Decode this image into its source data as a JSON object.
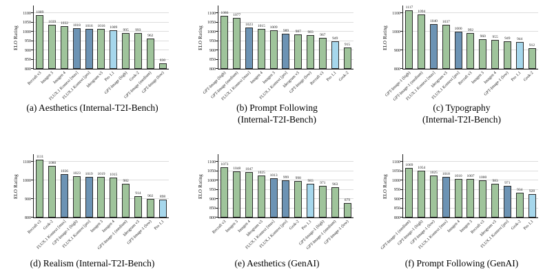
{
  "colors": {
    "green": "#9fc49b",
    "dark_blue": "#6c93b4",
    "light_blue": "#a6d7ec",
    "bar_border": "#2a2a2a",
    "grid": "#dcdcdc",
    "axis": "#1a1a1a"
  },
  "chart_data": [
    {
      "id": "a",
      "type": "bar",
      "caption_lines": [
        "(a) Aesthetics (Internal-T2I-Bench)"
      ],
      "ylabel": "ELO Rating",
      "ylim": [
        800,
        1142
      ],
      "yticks": [
        800,
        850,
        900,
        950,
        1000,
        1050,
        1100
      ],
      "grid": true,
      "legend": "none",
      "categories": [
        "Recraft v3",
        "Imagen 3",
        "Imagen 4",
        "FLUX.1 Kontext [max]",
        "FLUX.1 Kontext [pro]",
        "Ideogram v3",
        "Pro 1.1",
        "GPT-Image (high)",
        "Grok-2",
        "GPT-Image (medium)",
        "GPT-Image (low)"
      ],
      "values": [
        1089,
        1039,
        1032,
        1018,
        1016,
        1016,
        1009,
        995,
        993,
        962,
        830
      ],
      "bar_colors": [
        "green",
        "green",
        "green",
        "dark_blue",
        "dark_blue",
        "green",
        "light_blue",
        "green",
        "green",
        "green",
        "green"
      ]
    },
    {
      "id": "b",
      "type": "bar",
      "caption_lines": [
        "(b) Prompt Following",
        "(Internal-T2I-Bench)"
      ],
      "ylabel": "ELO Rating",
      "ylim": [
        800,
        1142
      ],
      "yticks": [
        800,
        850,
        900,
        950,
        1000,
        1050,
        1100
      ],
      "grid": true,
      "legend": "none",
      "categories": [
        "GPT-Image (high)",
        "GPT-Image (medium)",
        "FLUX.1 Kontext [max]",
        "Imagen 4",
        "Imagen 3",
        "FLUX.1 Kontext [pro]",
        "Ideogram v3",
        "GPT-Image (low)",
        "Recraft v3",
        "Pro 1.1",
        "Grok-2"
      ],
      "values": [
        1086,
        1077,
        1023,
        1015,
        1009,
        989,
        987,
        983,
        967,
        949,
        915
      ],
      "bar_colors": [
        "green",
        "green",
        "dark_blue",
        "green",
        "green",
        "dark_blue",
        "green",
        "green",
        "green",
        "light_blue",
        "green"
      ]
    },
    {
      "id": "c",
      "type": "bar",
      "caption_lines": [
        "(c) Typography",
        "(Internal-T2I-Bench)"
      ],
      "ylabel": "ELO Rating",
      "ylim": [
        800,
        1142
      ],
      "yticks": [
        800,
        900,
        1000,
        1100
      ],
      "grid": true,
      "legend": "none",
      "categories": [
        "GPT-Image-1 (high)",
        "GPT-Image-1 (medium)",
        "FLUX.1 Kontext [max]",
        "Ideogram v3",
        "FLUX.1 Kontext [pro]",
        "Recraft v3",
        "Imagen 3",
        "Imagen 4",
        "GPT-Image-1 (low)",
        "Pro 1.1",
        "Grok-2"
      ],
      "values": [
        1117,
        1094,
        1040,
        1037,
        1000,
        992,
        960,
        955,
        949,
        944,
        912
      ],
      "bar_colors": [
        "green",
        "green",
        "dark_blue",
        "green",
        "dark_blue",
        "green",
        "green",
        "green",
        "green",
        "light_blue",
        "green"
      ]
    },
    {
      "id": "d",
      "type": "bar",
      "caption_lines": [
        "(d) Realism (Internal-T2I-Bench)"
      ],
      "ylabel": "ELO Rating",
      "ylim": [
        800,
        1142
      ],
      "yticks": [
        800,
        900,
        1000,
        1100
      ],
      "grid": true,
      "legend": "none",
      "categories": [
        "Recraft v3",
        "Grok-2",
        "FLUX.1 Kontext [max]",
        "GPT-Image-1 (high)",
        "FLUX.1 Kontext [pro]",
        "Imagen 3",
        "Imagen 4",
        "GPT-Image-1 (medium)",
        "Ideogram v3",
        "GPT-Image-1 (low)",
        "Pro 1.1"
      ],
      "values": [
        1111,
        1080,
        1036,
        1023,
        1019,
        1019,
        1015,
        982,
        914,
        902,
        898
      ],
      "bar_colors": [
        "green",
        "green",
        "dark_blue",
        "green",
        "dark_blue",
        "green",
        "green",
        "green",
        "green",
        "green",
        "light_blue"
      ]
    },
    {
      "id": "e",
      "type": "bar",
      "caption_lines": [
        "(e) Aesthetics (GenAI)"
      ],
      "ylabel": "ELO Rating",
      "ylim": [
        800,
        1142
      ],
      "yticks": [
        800,
        850,
        900,
        950,
        1000,
        1050,
        1100
      ],
      "grid": true,
      "legend": "none",
      "categories": [
        "Recraft v3",
        "Imagen 3",
        "Imagen 4",
        "Ideogram v3",
        "FLUX.1 Kontext [max]",
        "FLUX.1 Kontext [pro]",
        "Grok-2",
        "Pro 1.1",
        "GPT-Image-1 (high)",
        "GPT-Image-1 (medium)",
        "GPT-Image-1 (low)"
      ],
      "values": [
        1073,
        1048,
        1047,
        1025,
        1013,
        999,
        998,
        983,
        971,
        963,
        879
      ],
      "bar_colors": [
        "green",
        "green",
        "green",
        "green",
        "dark_blue",
        "dark_blue",
        "green",
        "light_blue",
        "green",
        "green",
        "green"
      ]
    },
    {
      "id": "f",
      "type": "bar",
      "caption_lines": [
        "(f) Prompt Following (GenAI)"
      ],
      "ylabel": "ELO Rating",
      "ylim": [
        800,
        1142
      ],
      "yticks": [
        800,
        850,
        900,
        950,
        1000,
        1050,
        1100
      ],
      "grid": true,
      "legend": "none",
      "categories": [
        "GPT-Image-1 (medium)",
        "GPT-Image-1 (high)",
        "GPT-Image-1 (low)",
        "FLUX.1 Kontext [max]",
        "Imagen 4",
        "Imagen 3",
        "Recraft v3",
        "Ideogram v3",
        "FLUX.1 Kontext [pro]",
        "Grok-2",
        "Pro 1.1"
      ],
      "values": [
        1069,
        1054,
        1025,
        1018,
        1010,
        1007,
        1000,
        983,
        971,
        934,
        928
      ],
      "bar_colors": [
        "green",
        "green",
        "green",
        "dark_blue",
        "green",
        "green",
        "green",
        "green",
        "dark_blue",
        "green",
        "light_blue"
      ]
    }
  ]
}
